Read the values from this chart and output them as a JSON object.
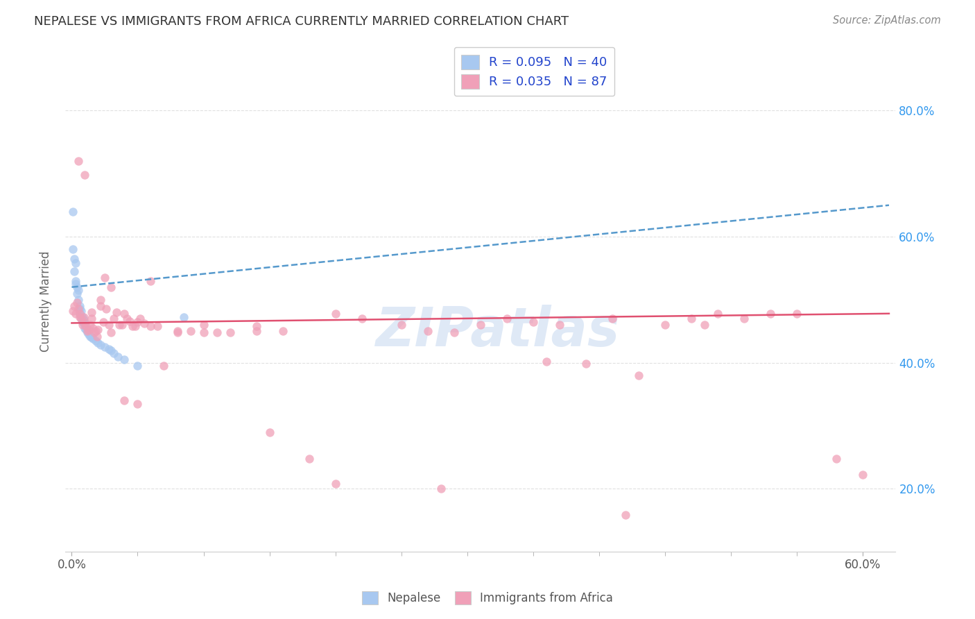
{
  "title": "NEPALESE VS IMMIGRANTS FROM AFRICA CURRENTLY MARRIED CORRELATION CHART",
  "source": "Source: ZipAtlas.com",
  "ylabel": "Currently Married",
  "y_tick_vals": [
    0.2,
    0.4,
    0.6,
    0.8
  ],
  "y_tick_labels": [
    "20.0%",
    "40.0%",
    "60.0%",
    "80.0%"
  ],
  "xlim": [
    -0.005,
    0.625
  ],
  "ylim": [
    0.1,
    0.895
  ],
  "nepalese_R": 0.095,
  "nepalese_N": 40,
  "africa_R": 0.035,
  "africa_N": 87,
  "nepalese_color": "#a8c8f0",
  "africa_color": "#f0a0b8",
  "nepalese_line_color": "#5599cc",
  "africa_line_color": "#e05070",
  "legend_text_color": "#2244cc",
  "background_color": "#ffffff",
  "grid_color": "#dddddd",
  "watermark": "ZIPatlas",
  "nepalese_x": [
    0.001,
    0.001,
    0.002,
    0.002,
    0.003,
    0.003,
    0.003,
    0.004,
    0.004,
    0.005,
    0.005,
    0.006,
    0.006,
    0.006,
    0.007,
    0.007,
    0.007,
    0.008,
    0.008,
    0.009,
    0.009,
    0.01,
    0.01,
    0.011,
    0.012,
    0.013,
    0.014,
    0.015,
    0.016,
    0.018,
    0.02,
    0.022,
    0.025,
    0.028,
    0.03,
    0.032,
    0.035,
    0.04,
    0.05,
    0.085
  ],
  "nepalese_y": [
    0.64,
    0.58,
    0.565,
    0.545,
    0.558,
    0.53,
    0.525,
    0.52,
    0.51,
    0.515,
    0.5,
    0.49,
    0.485,
    0.478,
    0.482,
    0.475,
    0.47,
    0.472,
    0.465,
    0.468,
    0.462,
    0.46,
    0.455,
    0.452,
    0.448,
    0.445,
    0.442,
    0.44,
    0.438,
    0.435,
    0.432,
    0.428,
    0.425,
    0.422,
    0.42,
    0.415,
    0.41,
    0.405,
    0.395,
    0.472
  ],
  "africa_x": [
    0.001,
    0.002,
    0.003,
    0.004,
    0.005,
    0.006,
    0.006,
    0.007,
    0.008,
    0.009,
    0.01,
    0.011,
    0.012,
    0.013,
    0.014,
    0.015,
    0.015,
    0.016,
    0.017,
    0.018,
    0.019,
    0.02,
    0.022,
    0.022,
    0.024,
    0.026,
    0.028,
    0.03,
    0.032,
    0.034,
    0.036,
    0.038,
    0.04,
    0.042,
    0.044,
    0.046,
    0.048,
    0.05,
    0.052,
    0.055,
    0.06,
    0.065,
    0.07,
    0.08,
    0.09,
    0.1,
    0.11,
    0.12,
    0.14,
    0.15,
    0.16,
    0.18,
    0.2,
    0.22,
    0.25,
    0.27,
    0.29,
    0.31,
    0.33,
    0.35,
    0.37,
    0.39,
    0.41,
    0.43,
    0.45,
    0.47,
    0.49,
    0.51,
    0.53,
    0.55,
    0.58,
    0.6,
    0.005,
    0.01,
    0.025,
    0.03,
    0.04,
    0.05,
    0.06,
    0.08,
    0.1,
    0.14,
    0.2,
    0.28,
    0.36,
    0.42,
    0.48
  ],
  "africa_y": [
    0.482,
    0.49,
    0.478,
    0.496,
    0.486,
    0.478,
    0.472,
    0.47,
    0.46,
    0.472,
    0.464,
    0.458,
    0.45,
    0.452,
    0.46,
    0.47,
    0.48,
    0.455,
    0.448,
    0.45,
    0.442,
    0.452,
    0.5,
    0.49,
    0.465,
    0.485,
    0.46,
    0.448,
    0.47,
    0.48,
    0.46,
    0.46,
    0.478,
    0.47,
    0.466,
    0.458,
    0.458,
    0.465,
    0.47,
    0.462,
    0.458,
    0.458,
    0.395,
    0.448,
    0.45,
    0.46,
    0.448,
    0.448,
    0.45,
    0.29,
    0.45,
    0.248,
    0.478,
    0.47,
    0.46,
    0.45,
    0.448,
    0.46,
    0.47,
    0.465,
    0.46,
    0.398,
    0.47,
    0.38,
    0.46,
    0.47,
    0.478,
    0.47,
    0.478,
    0.478,
    0.248,
    0.222,
    0.72,
    0.698,
    0.535,
    0.52,
    0.34,
    0.335,
    0.53,
    0.45,
    0.448,
    0.458,
    0.208,
    0.2,
    0.402,
    0.158,
    0.46
  ]
}
